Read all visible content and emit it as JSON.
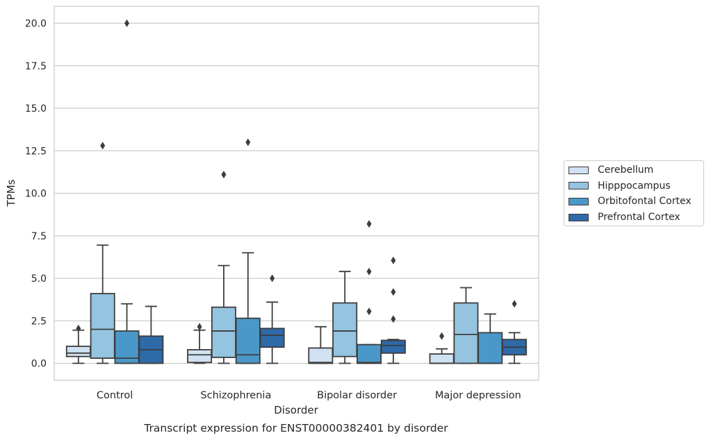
{
  "chart_data": {
    "type": "box",
    "title": "Transcript expression for ENST00000382401 by disorder",
    "xlabel": "Disorder",
    "ylabel": "TPMs",
    "ylim": [
      -1.0,
      21.0
    ],
    "yticks": [
      "0.0",
      "2.5",
      "5.0",
      "7.5",
      "10.0",
      "12.5",
      "15.0",
      "17.5",
      "20.0"
    ],
    "categories": [
      "Control",
      "Schizophrenia",
      "Bipolar disorder",
      "Major depression"
    ],
    "grid": "horizontal",
    "legend_position": "right",
    "series": [
      {
        "name": "Cerebellum",
        "color": "#d0e1f2",
        "boxes": [
          {
            "whislo": 0.0,
            "q1": 0.4,
            "median": 0.6,
            "q3": 1.0,
            "whishi": 1.95,
            "fliers": [
              2.05
            ]
          },
          {
            "whislo": 0.0,
            "q1": 0.05,
            "median": 0.5,
            "q3": 0.8,
            "whishi": 1.95,
            "fliers": [
              2.15
            ]
          },
          {
            "whislo": 0.0,
            "q1": 0.0,
            "median": 0.05,
            "q3": 0.9,
            "whishi": 2.15,
            "fliers": []
          },
          {
            "whislo": 0.0,
            "q1": 0.0,
            "median": 0.0,
            "q3": 0.55,
            "whishi": 0.85,
            "fliers": [
              1.6
            ]
          }
        ]
      },
      {
        "name": "Hipppocampus",
        "color": "#94c4df",
        "boxes": [
          {
            "whislo": 0.0,
            "q1": 0.3,
            "median": 2.0,
            "q3": 4.1,
            "whishi": 6.95,
            "fliers": [
              12.8
            ]
          },
          {
            "whislo": 0.0,
            "q1": 0.35,
            "median": 1.9,
            "q3": 3.3,
            "whishi": 5.75,
            "fliers": [
              11.1
            ]
          },
          {
            "whislo": 0.0,
            "q1": 0.4,
            "median": 1.9,
            "q3": 3.55,
            "whishi": 5.4,
            "fliers": []
          },
          {
            "whislo": 0.0,
            "q1": 0.0,
            "median": 1.7,
            "q3": 3.55,
            "whishi": 4.45,
            "fliers": []
          }
        ]
      },
      {
        "name": "Orbitofontal Cortex",
        "color": "#4a98c9",
        "boxes": [
          {
            "whislo": 0.0,
            "q1": 0.0,
            "median": 0.3,
            "q3": 1.9,
            "whishi": 3.5,
            "fliers": [
              20.0
            ]
          },
          {
            "whislo": 0.0,
            "q1": 0.0,
            "median": 0.5,
            "q3": 2.65,
            "whishi": 6.5,
            "fliers": [
              13.0
            ]
          },
          {
            "whislo": 0.0,
            "q1": 0.0,
            "median": 0.05,
            "q3": 1.1,
            "whishi": 1.1,
            "fliers": [
              8.2,
              5.4,
              3.05
            ]
          },
          {
            "whislo": 0.0,
            "q1": 0.0,
            "median": 0.0,
            "q3": 1.8,
            "whishi": 2.9,
            "fliers": []
          }
        ]
      },
      {
        "name": "Prefrontal Cortex",
        "color": "#2e69a8",
        "boxes": [
          {
            "whislo": 0.0,
            "q1": 0.0,
            "median": 0.8,
            "q3": 1.6,
            "whishi": 3.35,
            "fliers": []
          },
          {
            "whislo": 0.0,
            "q1": 0.95,
            "median": 1.65,
            "q3": 2.05,
            "whishi": 3.6,
            "fliers": [
              5.0
            ]
          },
          {
            "whislo": 0.0,
            "q1": 0.6,
            "median": 1.05,
            "q3": 1.35,
            "whishi": 1.4,
            "fliers": [
              6.05,
              4.2,
              2.6
            ]
          },
          {
            "whislo": 0.0,
            "q1": 0.5,
            "median": 0.95,
            "q3": 1.4,
            "whishi": 1.8,
            "fliers": [
              3.5
            ]
          }
        ]
      }
    ]
  }
}
